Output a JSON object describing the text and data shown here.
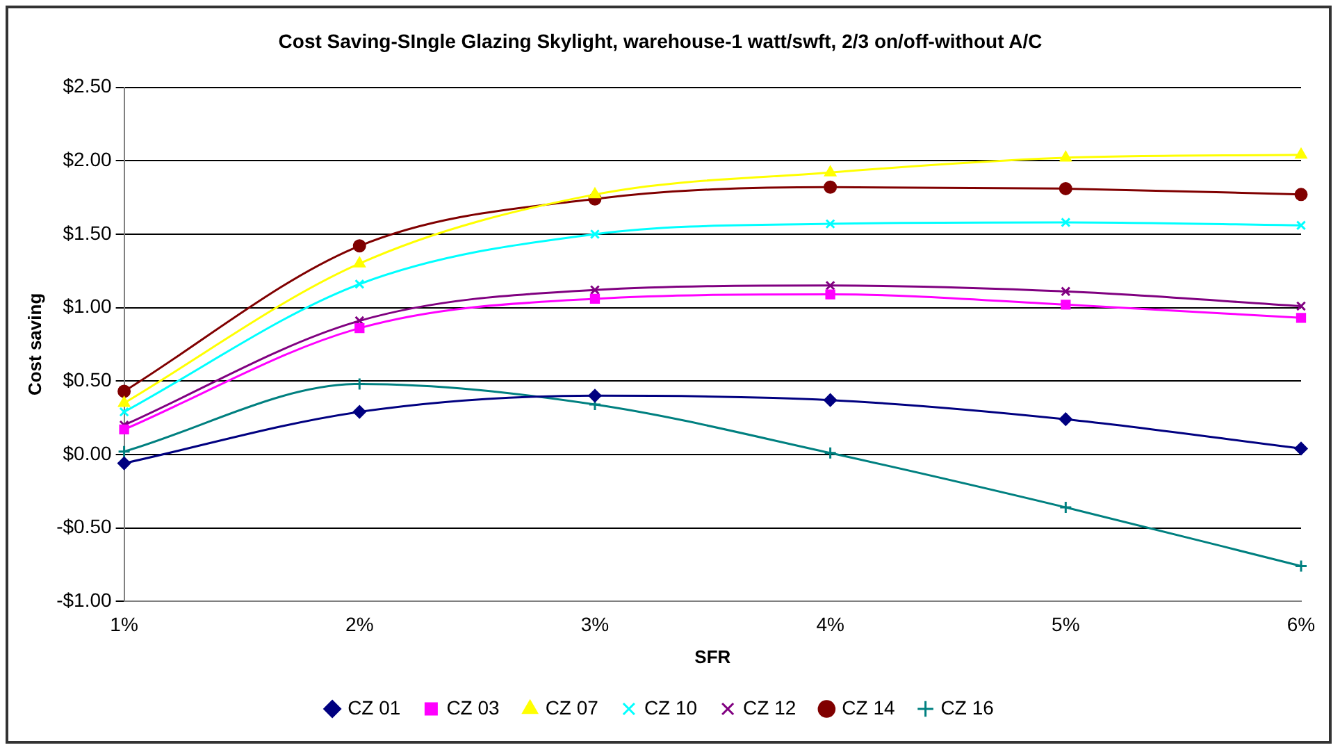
{
  "chart_data": {
    "type": "line",
    "title": "Cost Saving-SIngle Glazing Skylight, warehouse-1 watt/swft, 2/3 on/off-without A/C",
    "xlabel": "SFR",
    "ylabel": "Cost saving",
    "categories": [
      "1%",
      "2%",
      "3%",
      "4%",
      "5%",
      "6%"
    ],
    "ylim": [
      -1,
      2.5
    ],
    "yticks": [
      {
        "value": -1,
        "label": "-$1.00"
      },
      {
        "value": -0.5,
        "label": "-$0.50"
      },
      {
        "value": 0,
        "label": "$0.00"
      },
      {
        "value": 0.5,
        "label": "$0.50"
      },
      {
        "value": 1,
        "label": "$1.00"
      },
      {
        "value": 1.5,
        "label": "$1.50"
      },
      {
        "value": 2,
        "label": "$2.00"
      },
      {
        "value": 2.5,
        "label": "$2.50"
      }
    ],
    "grid": "y",
    "legend": "bottom",
    "series": [
      {
        "name": "CZ 01",
        "color": "#000080",
        "marker": "diamond",
        "values": [
          -0.06,
          0.29,
          0.4,
          0.37,
          0.24,
          0.04
        ]
      },
      {
        "name": "CZ 03",
        "color": "#ff00ff",
        "marker": "square",
        "values": [
          0.17,
          0.86,
          1.06,
          1.09,
          1.02,
          0.93
        ]
      },
      {
        "name": "CZ 07",
        "color": "#ffff00",
        "marker": "triangle",
        "values": [
          0.35,
          1.3,
          1.77,
          1.92,
          2.02,
          2.04
        ]
      },
      {
        "name": "CZ 10",
        "color": "#00ffff",
        "marker": "cross",
        "values": [
          0.29,
          1.16,
          1.5,
          1.57,
          1.58,
          1.56
        ]
      },
      {
        "name": "CZ 12",
        "color": "#800080",
        "marker": "cross",
        "values": [
          0.2,
          0.91,
          1.12,
          1.15,
          1.11,
          1.01
        ]
      },
      {
        "name": "CZ 14",
        "color": "#800000",
        "marker": "circle",
        "values": [
          0.43,
          1.42,
          1.74,
          1.82,
          1.81,
          1.77
        ]
      },
      {
        "name": "CZ 16",
        "color": "#008080",
        "marker": "plus",
        "values": [
          0.02,
          0.48,
          0.34,
          0.01,
          -0.36,
          -0.76
        ]
      }
    ]
  }
}
